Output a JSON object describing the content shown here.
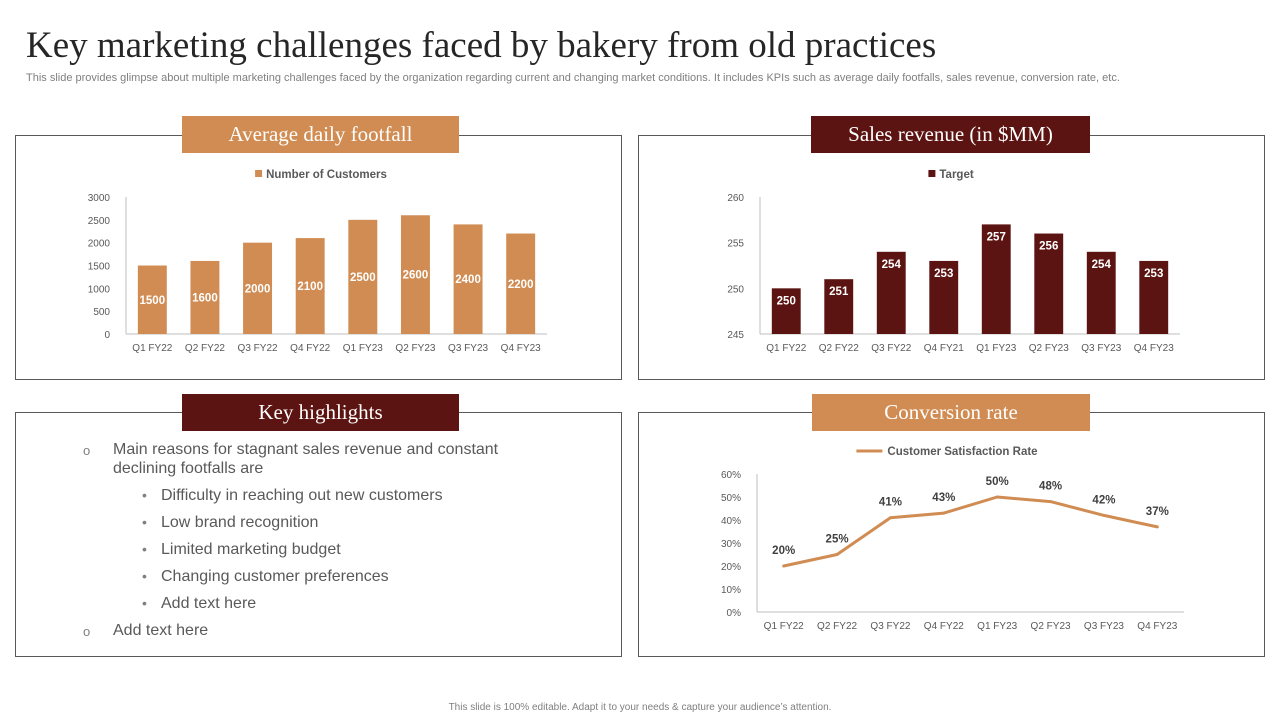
{
  "slide": {
    "title": "Key marketing challenges faced by bakery from old practices",
    "subtitle": "This slide provides glimpse about multiple marketing challenges faced by the organization regarding current and changing market conditions. It includes KPIs such as average daily footfalls, sales revenue, conversion rate, etc.",
    "footer": "This slide is 100% editable.  Adapt it to your needs & capture your audience’s attention."
  },
  "colors": {
    "tan": "#d08c52",
    "maroon": "#5c1412",
    "axis": "#595959",
    "gridline": "#d9d9d9"
  },
  "panels": {
    "footfall": {
      "title": "Average daily footfall"
    },
    "sales": {
      "title": "Sales revenue (in $MM)"
    },
    "highlights": {
      "title": "Key highlights"
    },
    "conversion": {
      "title": "Conversion rate"
    }
  },
  "highlights": {
    "item1": "Main reasons for stagnant sales revenue and constant declining footfalls are",
    "sub": [
      "Difficulty in reaching out new customers",
      "Low brand recognition",
      "Limited marketing budget",
      "Changing customer preferences",
      "Add text here"
    ],
    "item2": "Add text here"
  },
  "chart_data": [
    {
      "id": "footfall",
      "type": "bar",
      "legend": "Number of Customers",
      "categories": [
        "Q1 FY22",
        "Q2 FY22",
        "Q3 FY22",
        "Q4 FY22",
        "Q1 FY23",
        "Q2 FY23",
        "Q3 FY23",
        "Q4 FY23"
      ],
      "values": [
        1500,
        1600,
        2000,
        2100,
        2500,
        2600,
        2400,
        2200
      ],
      "labels": [
        "1500",
        "1600",
        "2000",
        "2100",
        "2500",
        "2600",
        "2400",
        "2200"
      ],
      "ylim": [
        0,
        3000
      ],
      "ticks": [
        0,
        500,
        1000,
        1500,
        2000,
        2500,
        3000
      ],
      "tick_labels": [
        "0",
        "500",
        "1000",
        "1500",
        "2000",
        "2500",
        "3000"
      ]
    },
    {
      "id": "sales",
      "type": "bar",
      "legend": "Target",
      "categories": [
        "Q1 FY22",
        "Q2 FY22",
        "Q3 FY22",
        "Q4 FY21",
        "Q1 FY23",
        "Q2 FY23",
        "Q3 FY23",
        "Q4 FY23"
      ],
      "values": [
        250,
        251,
        254,
        253,
        257,
        256,
        254,
        253
      ],
      "labels": [
        "250",
        "251",
        "254",
        "253",
        "257",
        "256",
        "254",
        "253"
      ],
      "ylim": [
        245,
        260
      ],
      "ticks": [
        245,
        250,
        255,
        260
      ],
      "tick_labels": [
        "245",
        "250",
        "255",
        "260"
      ]
    },
    {
      "id": "conversion",
      "type": "line",
      "legend": "Customer Satisfaction Rate",
      "categories": [
        "Q1 FY22",
        "Q2 FY22",
        "Q3 FY22",
        "Q4 FY22",
        "Q1 FY23",
        "Q2 FY23",
        "Q3 FY23",
        "Q4 FY23"
      ],
      "values": [
        20,
        25,
        41,
        43,
        50,
        48,
        42,
        37
      ],
      "labels": [
        "20%",
        "25%",
        "41%",
        "43%",
        "50%",
        "48%",
        "42%",
        "37%"
      ],
      "ylim": [
        0,
        60
      ],
      "ticks": [
        0,
        10,
        20,
        30,
        40,
        50,
        60
      ],
      "tick_labels": [
        "0%",
        "10%",
        "20%",
        "30%",
        "40%",
        "50%",
        "60%"
      ]
    }
  ]
}
